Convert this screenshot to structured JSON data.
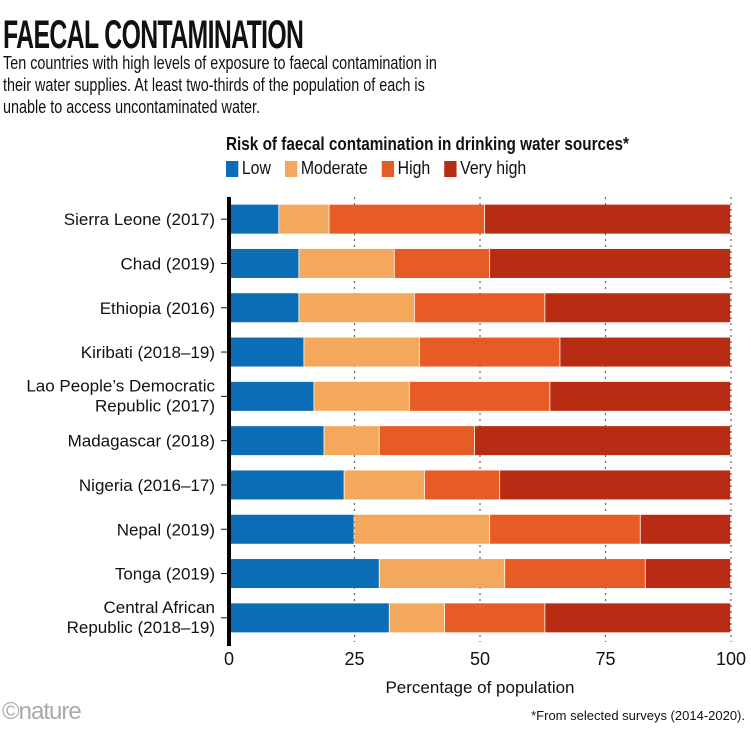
{
  "title": "FAECAL CONTAMINATION",
  "subtitle": "Ten countries with high levels of exposure to faecal contamination in their water supplies. At least two-thirds of the population of each is unable to access uncontaminated water.",
  "footnote": "*From selected surveys (2014-2020).",
  "logo": "©nature",
  "chart_data": {
    "type": "bar",
    "orientation": "horizontal",
    "stacked": true,
    "legend_title": "Risk of faecal contamination in drinking water sources*",
    "legend_position": "top",
    "xlabel": "Percentage of population",
    "xlim": [
      0,
      100
    ],
    "xticks": [
      "0",
      "25",
      "50",
      "75",
      "100"
    ],
    "grid": "dotted vertical",
    "categories": [
      [
        "Sierra Leone (2017)"
      ],
      [
        "Chad (2019)"
      ],
      [
        "Ethiopia (2016)"
      ],
      [
        "Kiribati (2018–19)"
      ],
      [
        "Lao People’s Democratic",
        "Republic (2017)"
      ],
      [
        "Madagascar (2018)"
      ],
      [
        "Nigeria (2016–17)"
      ],
      [
        "Nepal (2019)"
      ],
      [
        "Tonga (2019)"
      ],
      [
        "Central African",
        "Republic (2018–19)"
      ]
    ],
    "series": [
      {
        "name": "Low",
        "color": "#0a6db5",
        "values": [
          10,
          14,
          14,
          15,
          17,
          19,
          23,
          25,
          30,
          32
        ]
      },
      {
        "name": "Moderate",
        "color": "#f4a85c",
        "values": [
          10,
          19,
          23,
          23,
          19,
          11,
          16,
          27,
          25,
          11
        ]
      },
      {
        "name": "High",
        "color": "#e75c24",
        "values": [
          31,
          19,
          26,
          28,
          28,
          19,
          15,
          30,
          28,
          20
        ]
      },
      {
        "name": "Very high",
        "color": "#b72c13",
        "values": [
          49,
          48,
          37,
          34,
          36,
          51,
          46,
          18,
          17,
          37
        ]
      }
    ]
  }
}
